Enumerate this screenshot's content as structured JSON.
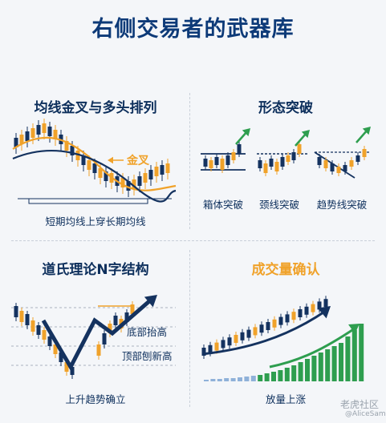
{
  "title": "右侧交易者的武器库",
  "panels": {
    "golden_cross": {
      "title": "均线金叉与多头排列",
      "cross_label": "金叉",
      "caption": "短期均线上穿长期均线"
    },
    "pattern_breakout": {
      "title": "形态突破",
      "labels": [
        "箱体突破",
        "颈线突破",
        "趋势线突破"
      ]
    },
    "dow_theory": {
      "title": "道氏理论N字结构",
      "label_high": "底部抬高",
      "label_low": "顶部刨新高",
      "caption": "上升趋势确立"
    },
    "volume": {
      "title": "成交量确认",
      "caption": "放量上涨"
    }
  },
  "watermark": {
    "brand": "老虎社区",
    "user": "@AliceSam"
  },
  "colors": {
    "navy": "#14325f",
    "orange": "#f0a22a",
    "green": "#2e9e4f",
    "title_blue": "#0d3a78"
  }
}
